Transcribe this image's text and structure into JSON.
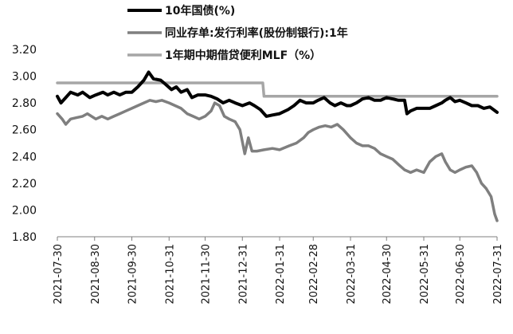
{
  "chart_data": {
    "type": "line",
    "title": "",
    "xlabel": "",
    "ylabel": "",
    "ylim": [
      1.8,
      3.2
    ],
    "xlim": [
      "2021-07-30",
      "2022-07-31"
    ],
    "grid": false,
    "legend_position": "top",
    "y_ticks": [
      "3.20",
      "3.00",
      "2.80",
      "2.60",
      "2.40",
      "2.20",
      "2.00",
      "1.80"
    ],
    "x_ticks": [
      "2021-07-30",
      "2021-08-30",
      "2021-09-30",
      "2021-10-31",
      "2021-11-30",
      "2021-12-31",
      "2022-01-31",
      "2022-02-28",
      "2022-03-31",
      "2022-04-30",
      "2022-05-31",
      "2022-06-30",
      "2022-07-31"
    ],
    "series": [
      {
        "name": "10年国债(%)",
        "color": "#000000",
        "points": [
          [
            "2021-07-30",
            2.85
          ],
          [
            "2021-08-02",
            2.8
          ],
          [
            "2021-08-06",
            2.84
          ],
          [
            "2021-08-10",
            2.88
          ],
          [
            "2021-08-16",
            2.86
          ],
          [
            "2021-08-20",
            2.88
          ],
          [
            "2021-08-26",
            2.84
          ],
          [
            "2021-08-31",
            2.86
          ],
          [
            "2021-09-06",
            2.88
          ],
          [
            "2021-09-10",
            2.86
          ],
          [
            "2021-09-15",
            2.88
          ],
          [
            "2021-09-20",
            2.86
          ],
          [
            "2021-09-25",
            2.88
          ],
          [
            "2021-09-30",
            2.88
          ],
          [
            "2021-10-05",
            2.92
          ],
          [
            "2021-10-10",
            2.97
          ],
          [
            "2021-10-14",
            3.03
          ],
          [
            "2021-10-18",
            2.98
          ],
          [
            "2021-10-24",
            2.97
          ],
          [
            "2021-10-28",
            2.94
          ],
          [
            "2021-11-02",
            2.9
          ],
          [
            "2021-11-06",
            2.92
          ],
          [
            "2021-11-10",
            2.88
          ],
          [
            "2021-11-15",
            2.9
          ],
          [
            "2021-11-19",
            2.84
          ],
          [
            "2021-11-24",
            2.86
          ],
          [
            "2021-11-30",
            2.86
          ],
          [
            "2021-12-05",
            2.85
          ],
          [
            "2021-12-10",
            2.83
          ],
          [
            "2021-12-15",
            2.8
          ],
          [
            "2021-12-20",
            2.82
          ],
          [
            "2021-12-25",
            2.8
          ],
          [
            "2021-12-31",
            2.78
          ],
          [
            "2022-01-06",
            2.8
          ],
          [
            "2022-01-10",
            2.78
          ],
          [
            "2022-01-15",
            2.75
          ],
          [
            "2022-01-18",
            2.72
          ],
          [
            "2022-01-20",
            2.7
          ],
          [
            "2022-01-25",
            2.71
          ],
          [
            "2022-01-31",
            2.72
          ],
          [
            "2022-02-07",
            2.75
          ],
          [
            "2022-02-12",
            2.78
          ],
          [
            "2022-02-17",
            2.82
          ],
          [
            "2022-02-22",
            2.8
          ],
          [
            "2022-02-28",
            2.8
          ],
          [
            "2022-03-04",
            2.82
          ],
          [
            "2022-03-09",
            2.84
          ],
          [
            "2022-03-14",
            2.8
          ],
          [
            "2022-03-18",
            2.78
          ],
          [
            "2022-03-23",
            2.8
          ],
          [
            "2022-03-28",
            2.78
          ],
          [
            "2022-03-31",
            2.78
          ],
          [
            "2022-04-05",
            2.8
          ],
          [
            "2022-04-10",
            2.83
          ],
          [
            "2022-04-15",
            2.84
          ],
          [
            "2022-04-20",
            2.82
          ],
          [
            "2022-04-25",
            2.82
          ],
          [
            "2022-04-30",
            2.84
          ],
          [
            "2022-05-05",
            2.83
          ],
          [
            "2022-05-10",
            2.82
          ],
          [
            "2022-05-15",
            2.82
          ],
          [
            "2022-05-17",
            2.72
          ],
          [
            "2022-05-20",
            2.74
          ],
          [
            "2022-05-25",
            2.76
          ],
          [
            "2022-05-31",
            2.76
          ],
          [
            "2022-06-05",
            2.76
          ],
          [
            "2022-06-10",
            2.78
          ],
          [
            "2022-06-15",
            2.8
          ],
          [
            "2022-06-18",
            2.82
          ],
          [
            "2022-06-22",
            2.84
          ],
          [
            "2022-06-26",
            2.81
          ],
          [
            "2022-06-30",
            2.82
          ],
          [
            "2022-07-05",
            2.8
          ],
          [
            "2022-07-10",
            2.78
          ],
          [
            "2022-07-15",
            2.78
          ],
          [
            "2022-07-20",
            2.76
          ],
          [
            "2022-07-25",
            2.77
          ],
          [
            "2022-07-31",
            2.73
          ]
        ]
      },
      {
        "name": "同业存单:发行利率(股份制银行):1年",
        "color": "#7f7f7f",
        "points": [
          [
            "2021-07-30",
            2.72
          ],
          [
            "2021-08-03",
            2.68
          ],
          [
            "2021-08-06",
            2.64
          ],
          [
            "2021-08-10",
            2.68
          ],
          [
            "2021-08-15",
            2.69
          ],
          [
            "2021-08-20",
            2.7
          ],
          [
            "2021-08-24",
            2.72
          ],
          [
            "2021-08-31",
            2.68
          ],
          [
            "2021-09-05",
            2.7
          ],
          [
            "2021-09-10",
            2.68
          ],
          [
            "2021-09-15",
            2.7
          ],
          [
            "2021-09-20",
            2.72
          ],
          [
            "2021-09-25",
            2.74
          ],
          [
            "2021-09-30",
            2.76
          ],
          [
            "2021-10-05",
            2.78
          ],
          [
            "2021-10-10",
            2.8
          ],
          [
            "2021-10-15",
            2.82
          ],
          [
            "2021-10-20",
            2.81
          ],
          [
            "2021-10-25",
            2.82
          ],
          [
            "2021-10-31",
            2.8
          ],
          [
            "2021-11-05",
            2.78
          ],
          [
            "2021-11-10",
            2.76
          ],
          [
            "2021-11-15",
            2.72
          ],
          [
            "2021-11-20",
            2.7
          ],
          [
            "2021-11-25",
            2.68
          ],
          [
            "2021-11-30",
            2.7
          ],
          [
            "2021-12-05",
            2.74
          ],
          [
            "2021-12-08",
            2.8
          ],
          [
            "2021-12-12",
            2.78
          ],
          [
            "2021-12-16",
            2.7
          ],
          [
            "2021-12-20",
            2.68
          ],
          [
            "2021-12-25",
            2.66
          ],
          [
            "2021-12-29",
            2.6
          ],
          [
            "2022-01-02",
            2.42
          ],
          [
            "2022-01-05",
            2.54
          ],
          [
            "2022-01-08",
            2.44
          ],
          [
            "2022-01-12",
            2.44
          ],
          [
            "2022-01-18",
            2.45
          ],
          [
            "2022-01-25",
            2.46
          ],
          [
            "2022-01-31",
            2.45
          ],
          [
            "2022-02-08",
            2.48
          ],
          [
            "2022-02-14",
            2.5
          ],
          [
            "2022-02-20",
            2.54
          ],
          [
            "2022-02-24",
            2.58
          ],
          [
            "2022-02-28",
            2.6
          ],
          [
            "2022-03-05",
            2.62
          ],
          [
            "2022-03-10",
            2.63
          ],
          [
            "2022-03-15",
            2.62
          ],
          [
            "2022-03-20",
            2.64
          ],
          [
            "2022-03-25",
            2.6
          ],
          [
            "2022-03-31",
            2.54
          ],
          [
            "2022-04-05",
            2.5
          ],
          [
            "2022-04-10",
            2.48
          ],
          [
            "2022-04-15",
            2.48
          ],
          [
            "2022-04-20",
            2.46
          ],
          [
            "2022-04-25",
            2.42
          ],
          [
            "2022-04-30",
            2.4
          ],
          [
            "2022-05-05",
            2.38
          ],
          [
            "2022-05-10",
            2.34
          ],
          [
            "2022-05-15",
            2.3
          ],
          [
            "2022-05-20",
            2.28
          ],
          [
            "2022-05-25",
            2.3
          ],
          [
            "2022-05-31",
            2.28
          ],
          [
            "2022-06-05",
            2.36
          ],
          [
            "2022-06-10",
            2.4
          ],
          [
            "2022-06-15",
            2.42
          ],
          [
            "2022-06-18",
            2.36
          ],
          [
            "2022-06-22",
            2.3
          ],
          [
            "2022-06-26",
            2.28
          ],
          [
            "2022-06-30",
            2.3
          ],
          [
            "2022-07-05",
            2.32
          ],
          [
            "2022-07-10",
            2.33
          ],
          [
            "2022-07-14",
            2.28
          ],
          [
            "2022-07-18",
            2.2
          ],
          [
            "2022-07-22",
            2.16
          ],
          [
            "2022-07-26",
            2.1
          ],
          [
            "2022-07-29",
            1.97
          ],
          [
            "2022-07-31",
            1.92
          ]
        ]
      },
      {
        "name": "1年期中期借贷便利MLF（%）",
        "color": "#a6a6a6",
        "points": [
          [
            "2021-07-30",
            2.95
          ],
          [
            "2022-01-17",
            2.95
          ],
          [
            "2022-01-18",
            2.85
          ],
          [
            "2022-07-31",
            2.85
          ]
        ]
      }
    ]
  }
}
